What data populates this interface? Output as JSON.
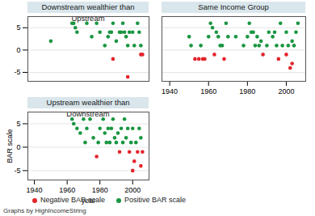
{
  "chart_data": [
    {
      "type": "scatter",
      "title": "Downstream wealthier than Upstream",
      "xlim": [
        1936,
        2010
      ],
      "ylim": [
        -7,
        7.5
      ],
      "xticks": [
        1940,
        1960,
        1980,
        2000
      ],
      "yticks": [
        -5,
        0,
        5
      ],
      "grid": true,
      "tick_labels": "y",
      "series": [
        {
          "name": "Negative BAR scale",
          "color": "#e3242b",
          "x": [
            1988,
            1997,
            2005,
            2006
          ],
          "values": [
            -2,
            -6,
            -1,
            -1
          ]
        },
        {
          "name": "Positive BAR scale",
          "color": "#1a9641",
          "x": [
            1950,
            1963,
            1964,
            1965,
            1966,
            1972,
            1975,
            1978,
            1980,
            1983,
            1985,
            1986,
            1987,
            1988,
            1990,
            1992,
            1993,
            1994,
            1995,
            1996,
            1997,
            1998,
            2000,
            2001,
            2003,
            2004,
            2005
          ],
          "values": [
            2,
            6,
            6,
            5,
            4,
            6,
            3,
            6,
            4,
            1,
            3,
            4,
            4,
            6,
            2,
            4,
            4,
            6,
            4,
            3,
            1,
            4,
            4,
            1,
            6,
            4,
            1
          ]
        }
      ]
    },
    {
      "type": "scatter",
      "title": "Same Income Group",
      "xlim": [
        1936,
        2010
      ],
      "ylim": [
        -7,
        7.5
      ],
      "xticks": [
        1940,
        1960,
        1980,
        2000
      ],
      "yticks": [
        -5,
        0,
        5
      ],
      "grid": true,
      "tick_labels": "x",
      "series": [
        {
          "name": "Negative BAR scale",
          "color": "#e3242b",
          "x": [
            1953,
            1955,
            1957,
            1958,
            1963,
            1968,
            1988,
            1996,
            2000,
            2002,
            2003
          ],
          "values": [
            -2,
            -2,
            -2,
            -2,
            -1,
            -2,
            -1,
            -2,
            -1,
            -4,
            -3
          ]
        },
        {
          "name": "Positive BAR scale",
          "color": "#1a9641",
          "x": [
            1950,
            1951,
            1956,
            1960,
            1961,
            1962,
            1964,
            1965,
            1966,
            1967,
            1969,
            1970,
            1974,
            1978,
            1980,
            1981,
            1982,
            1983,
            1984,
            1985,
            1986,
            1987,
            1990,
            1991,
            1993,
            1994,
            1995,
            1997,
            1998,
            2000,
            2001,
            2003,
            2004,
            2005,
            2006
          ],
          "values": [
            3,
            1,
            1,
            3,
            6,
            5,
            4,
            3,
            1,
            1,
            6,
            3,
            3,
            1,
            3,
            6,
            4,
            4,
            1,
            3,
            1,
            2,
            1,
            4,
            3,
            4,
            1,
            6,
            1,
            4,
            1,
            2,
            1,
            4,
            6
          ]
        }
      ]
    },
    {
      "type": "scatter",
      "title": "Upstream wealthier than Downstream",
      "xlabel": "year",
      "ylabel": "BAR scale",
      "xlim": [
        1936,
        2010
      ],
      "ylim": [
        -7,
        7.5
      ],
      "xticks": [
        1940,
        1960,
        1980,
        2000
      ],
      "yticks": [
        -5,
        0,
        5
      ],
      "grid": true,
      "legend": "bottom",
      "annotations": [
        "Graphs by HighIncomeString"
      ],
      "series": [
        {
          "name": "Negative BAR scale",
          "color": "#e3242b",
          "x": [
            1978,
            1992,
            1998,
            2000,
            2001,
            2003,
            2005,
            2006
          ],
          "values": [
            -2,
            -1,
            -1,
            -5,
            -3,
            -1,
            -4,
            -1
          ]
        },
        {
          "name": "Positive BAR scale",
          "color": "#1a9641",
          "x": [
            1963,
            1964,
            1966,
            1968,
            1970,
            1971,
            1972,
            1974,
            1976,
            1979,
            1980,
            1982,
            1983,
            1984,
            1985,
            1986,
            1987,
            1988,
            1989,
            1990,
            1991,
            1993,
            1994,
            1995,
            1996,
            1997,
            1999,
            2000,
            2002,
            2004,
            2005
          ],
          "values": [
            6,
            5,
            4,
            3,
            6,
            1,
            4,
            6,
            2,
            1,
            4,
            6,
            3,
            1,
            4,
            1,
            4,
            6,
            2,
            1,
            3,
            4,
            1,
            6,
            2,
            4,
            1,
            4,
            1,
            4,
            2
          ]
        }
      ]
    }
  ]
}
